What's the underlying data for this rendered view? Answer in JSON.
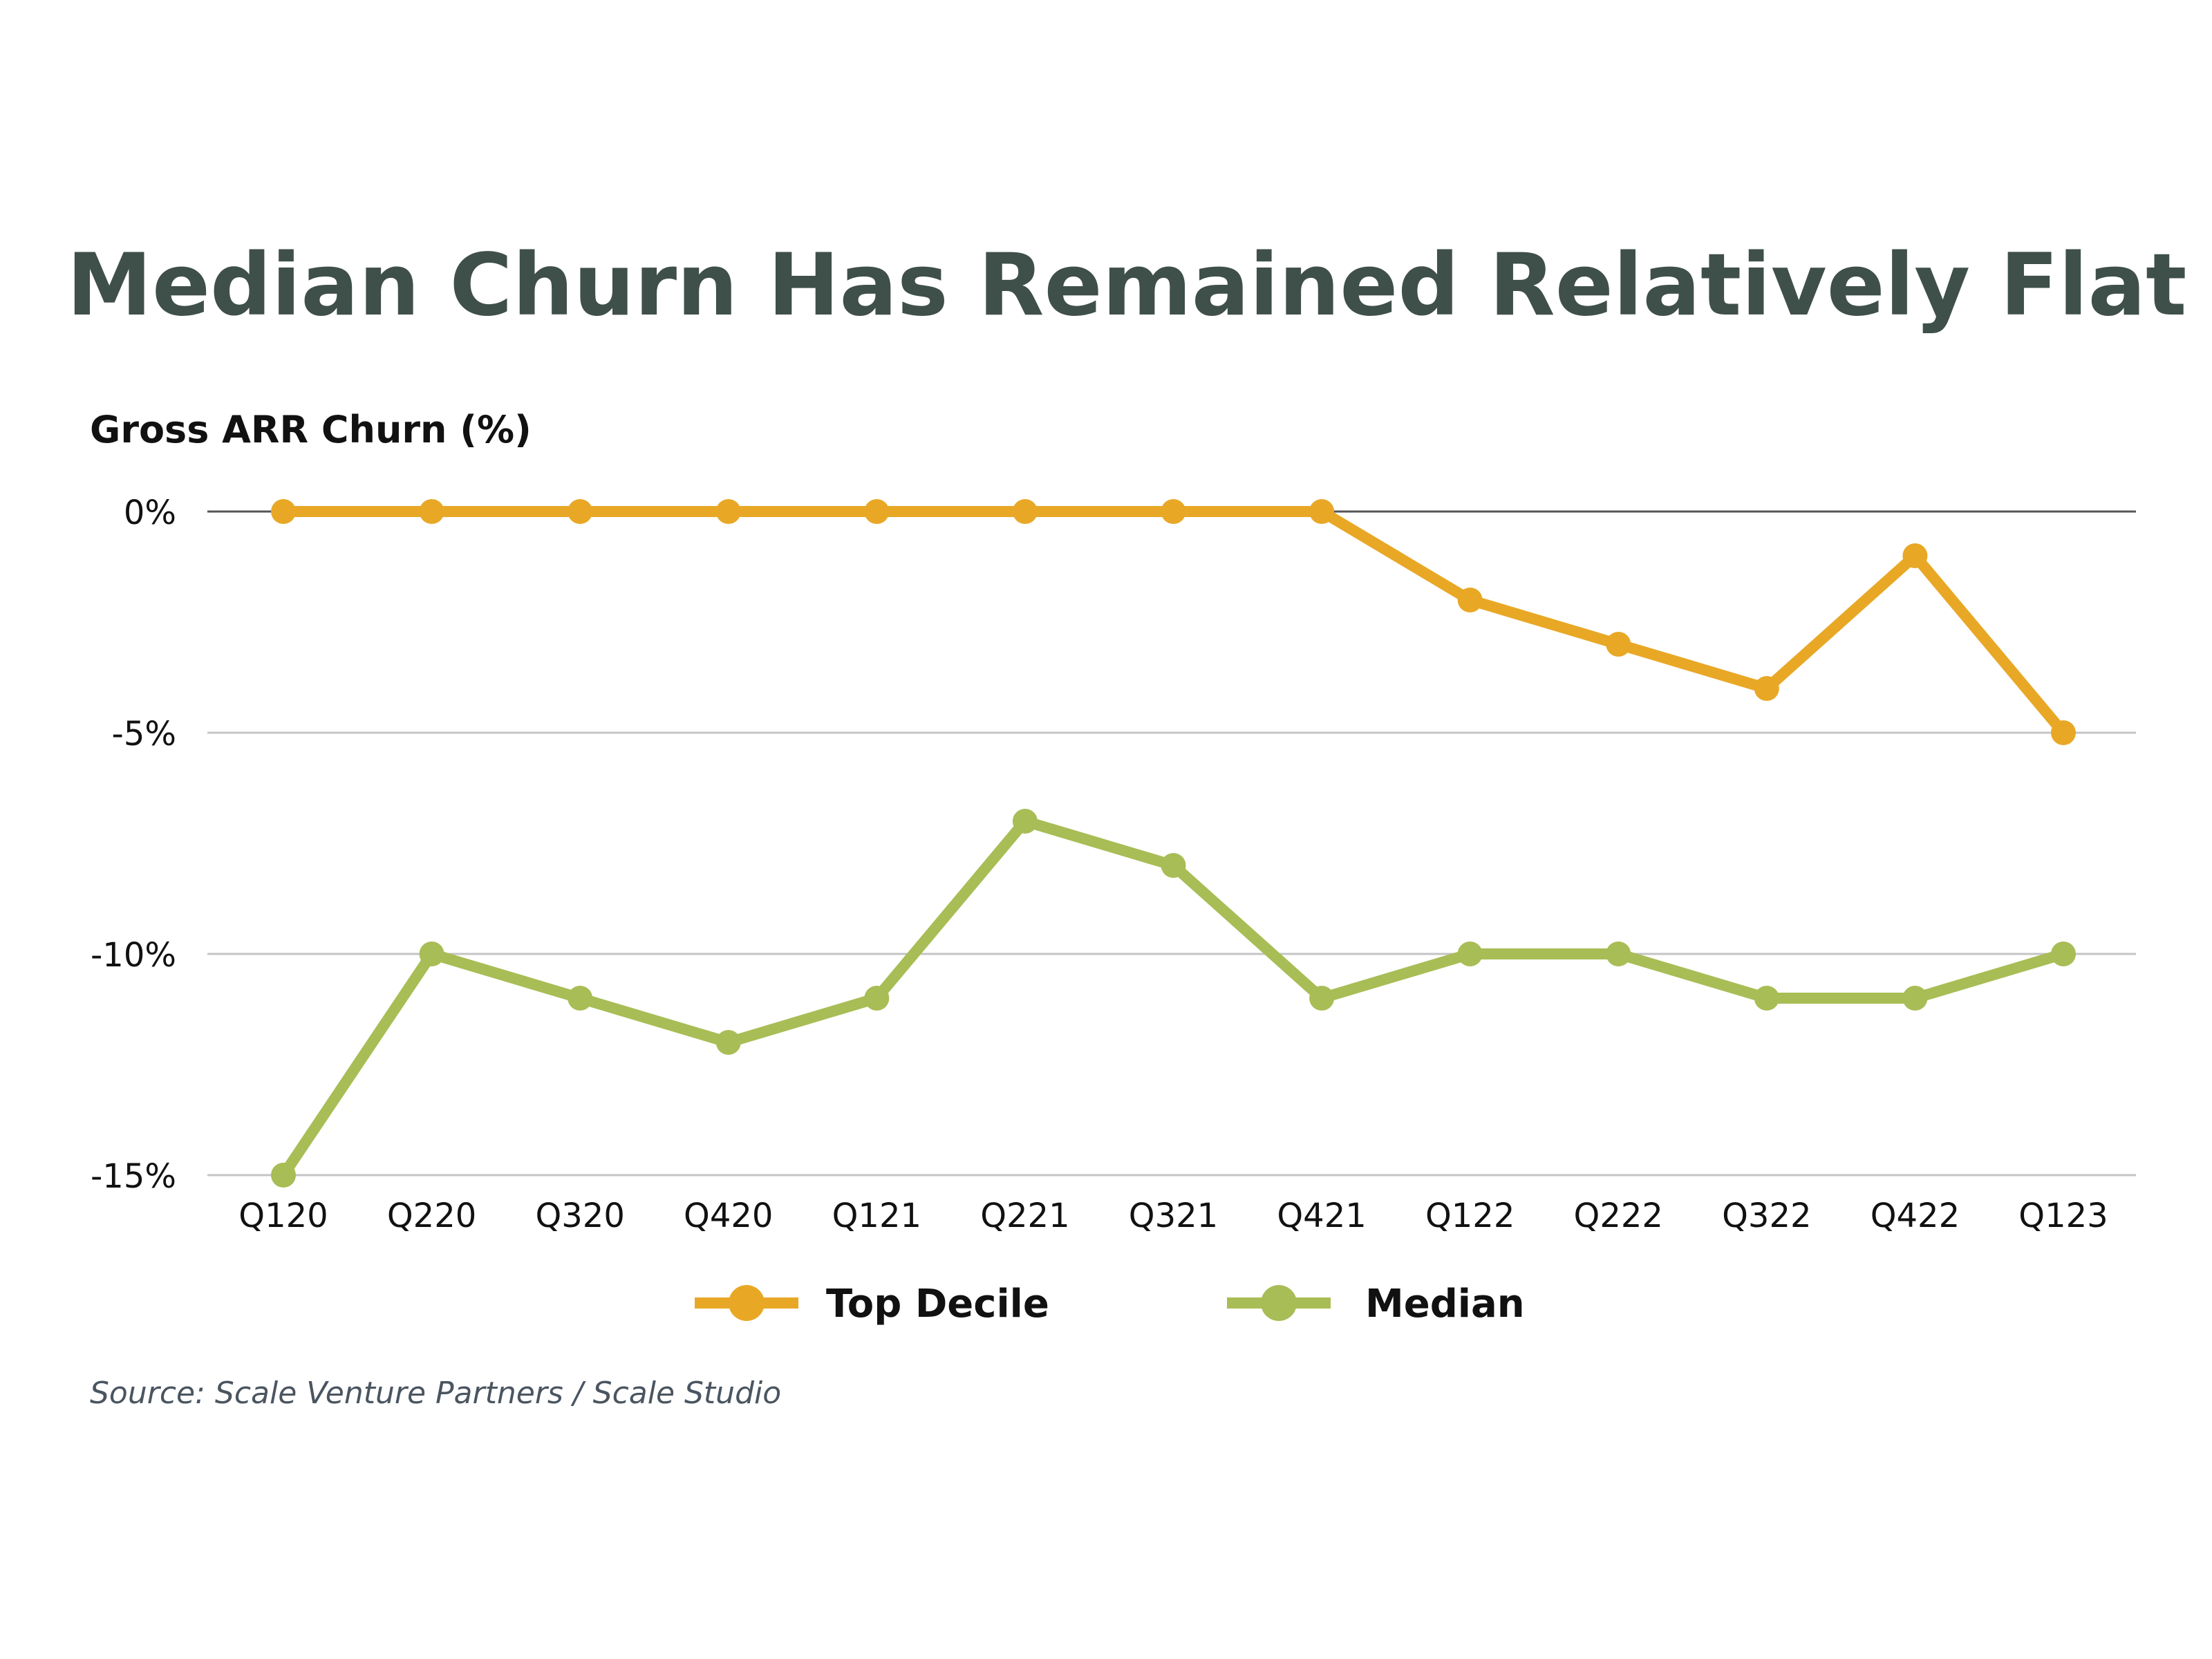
{
  "chart_data": {
    "type": "line",
    "title": "Median Churn Has Remained Relatively Flat",
    "ylabel": "Gross ARR Churn (%)",
    "xlabel": "",
    "categories": [
      "Q120",
      "Q220",
      "Q320",
      "Q420",
      "Q121",
      "Q221",
      "Q321",
      "Q421",
      "Q122",
      "Q222",
      "Q322",
      "Q422",
      "Q123"
    ],
    "ylim": [
      -15,
      0
    ],
    "yticks": [
      0,
      -5,
      -10,
      -15
    ],
    "ytick_labels": [
      "0%",
      "-5%",
      "-10%",
      "-15%"
    ],
    "grid": true,
    "legend_placement": "bottom",
    "series": [
      {
        "name": "Top Decile",
        "color": "#e8a826",
        "values": [
          0,
          0,
          0,
          0,
          0,
          0,
          0,
          0,
          -2,
          -3,
          -4,
          -1,
          -5
        ]
      },
      {
        "name": "Median",
        "color": "#a8bd55",
        "values": [
          -15,
          -10,
          -11,
          -12,
          -11,
          -7,
          -8,
          -11,
          -10,
          -10,
          -11,
          -11,
          -10
        ]
      }
    ],
    "source": "Source: Scale Venture Partners / Scale Studio"
  }
}
